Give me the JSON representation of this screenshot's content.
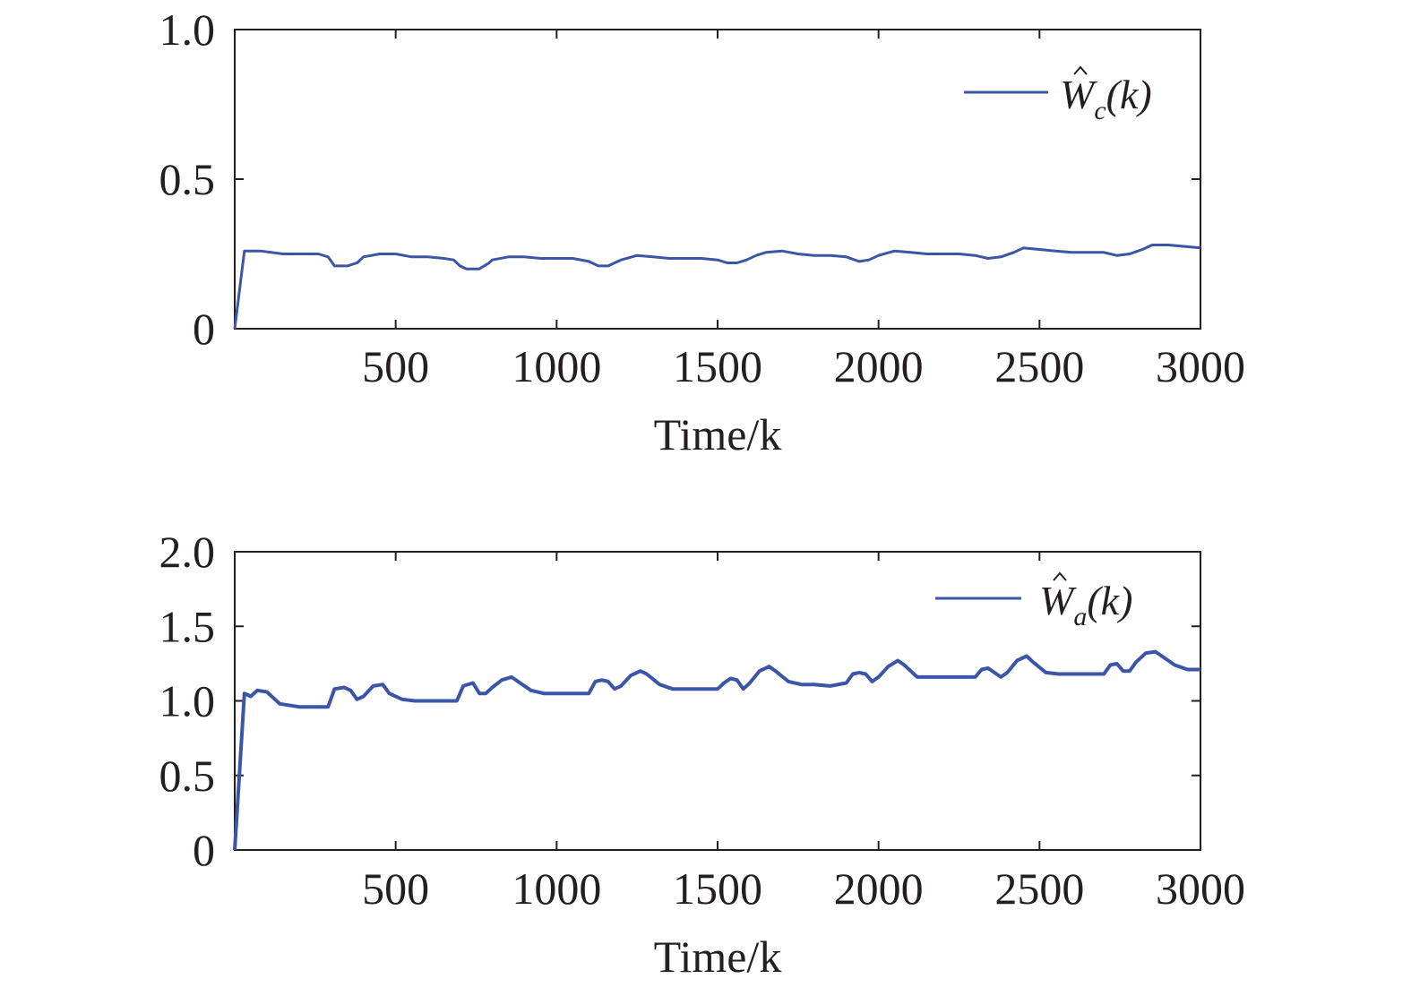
{
  "chart_data": [
    {
      "type": "line",
      "xlabel": "Time/k",
      "ylabel": "",
      "xlim": [
        0,
        3000
      ],
      "ylim": [
        0,
        1.0
      ],
      "xticks": [
        500,
        1000,
        1500,
        2000,
        2500,
        3000
      ],
      "xtick_labels": [
        "500",
        "1000",
        "1500",
        "2000",
        "2500",
        "3000"
      ],
      "yticks": [
        0,
        0.5,
        1.0
      ],
      "ytick_labels": [
        "0",
        "0.5",
        "1.0"
      ],
      "grid": false,
      "legend_position": "top-right",
      "line_color": "#3b55a7",
      "series": [
        {
          "legend": {
            "symbol": "W",
            "subscript": "c",
            "arg": "(k)"
          },
          "x": [
            0,
            30,
            50,
            80,
            150,
            220,
            260,
            290,
            310,
            350,
            380,
            400,
            450,
            500,
            550,
            600,
            650,
            680,
            700,
            720,
            760,
            790,
            800,
            850,
            900,
            950,
            1000,
            1050,
            1100,
            1130,
            1160,
            1180,
            1200,
            1250,
            1300,
            1350,
            1400,
            1450,
            1500,
            1530,
            1560,
            1590,
            1620,
            1650,
            1700,
            1750,
            1800,
            1850,
            1900,
            1940,
            1970,
            2000,
            2050,
            2100,
            2150,
            2200,
            2250,
            2300,
            2340,
            2380,
            2420,
            2450,
            2500,
            2550,
            2600,
            2650,
            2700,
            2740,
            2780,
            2820,
            2850,
            2900,
            2950,
            3000
          ],
          "y": [
            0,
            0.26,
            0.26,
            0.26,
            0.25,
            0.25,
            0.25,
            0.24,
            0.21,
            0.21,
            0.22,
            0.24,
            0.25,
            0.25,
            0.24,
            0.24,
            0.235,
            0.23,
            0.21,
            0.2,
            0.2,
            0.22,
            0.23,
            0.24,
            0.24,
            0.235,
            0.235,
            0.235,
            0.225,
            0.21,
            0.21,
            0.22,
            0.23,
            0.245,
            0.24,
            0.235,
            0.235,
            0.235,
            0.23,
            0.22,
            0.22,
            0.23,
            0.245,
            0.255,
            0.26,
            0.25,
            0.245,
            0.245,
            0.24,
            0.225,
            0.23,
            0.245,
            0.26,
            0.255,
            0.25,
            0.25,
            0.25,
            0.245,
            0.235,
            0.24,
            0.255,
            0.27,
            0.265,
            0.26,
            0.255,
            0.255,
            0.255,
            0.245,
            0.25,
            0.265,
            0.28,
            0.28,
            0.275,
            0.27
          ]
        }
      ]
    },
    {
      "type": "line",
      "xlabel": "Time/k",
      "ylabel": "",
      "xlim": [
        0,
        3000
      ],
      "ylim": [
        0,
        2.0
      ],
      "xticks": [
        500,
        1000,
        1500,
        2000,
        2500,
        3000
      ],
      "xtick_labels": [
        "500",
        "1000",
        "1500",
        "2000",
        "2500",
        "3000"
      ],
      "yticks": [
        0,
        0.5,
        1.0,
        1.5,
        2.0
      ],
      "ytick_labels": [
        "0",
        "0.5",
        "1.0",
        "1.5",
        "2.0"
      ],
      "grid": false,
      "legend_position": "top-right",
      "line_color": "#3b55a7",
      "series": [
        {
          "legend": {
            "symbol": "W",
            "subscript": "a",
            "arg": "(k)"
          },
          "x": [
            0,
            30,
            50,
            70,
            100,
            140,
            200,
            250,
            290,
            310,
            340,
            360,
            380,
            400,
            430,
            460,
            480,
            520,
            560,
            600,
            650,
            690,
            710,
            740,
            760,
            780,
            800,
            830,
            860,
            880,
            920,
            960,
            1000,
            1050,
            1100,
            1120,
            1140,
            1160,
            1180,
            1200,
            1230,
            1260,
            1280,
            1320,
            1360,
            1400,
            1450,
            1500,
            1520,
            1540,
            1560,
            1580,
            1600,
            1630,
            1660,
            1680,
            1720,
            1760,
            1800,
            1850,
            1900,
            1920,
            1940,
            1960,
            1980,
            2000,
            2030,
            2060,
            2080,
            2120,
            2160,
            2200,
            2250,
            2300,
            2320,
            2340,
            2360,
            2380,
            2400,
            2430,
            2460,
            2480,
            2520,
            2560,
            2600,
            2650,
            2700,
            2720,
            2740,
            2760,
            2780,
            2800,
            2830,
            2860,
            2880,
            2920,
            2960,
            3000
          ],
          "y": [
            0,
            1.05,
            1.03,
            1.07,
            1.06,
            0.98,
            0.96,
            0.96,
            0.96,
            1.08,
            1.09,
            1.07,
            1.01,
            1.03,
            1.1,
            1.11,
            1.05,
            1.01,
            1.0,
            1.0,
            1.0,
            1.0,
            1.1,
            1.12,
            1.05,
            1.05,
            1.09,
            1.14,
            1.16,
            1.13,
            1.07,
            1.05,
            1.05,
            1.05,
            1.05,
            1.13,
            1.14,
            1.13,
            1.08,
            1.1,
            1.17,
            1.2,
            1.18,
            1.11,
            1.08,
            1.08,
            1.08,
            1.08,
            1.12,
            1.15,
            1.14,
            1.08,
            1.12,
            1.2,
            1.23,
            1.2,
            1.13,
            1.11,
            1.11,
            1.1,
            1.12,
            1.18,
            1.19,
            1.18,
            1.13,
            1.16,
            1.23,
            1.27,
            1.24,
            1.16,
            1.16,
            1.16,
            1.16,
            1.16,
            1.21,
            1.22,
            1.19,
            1.16,
            1.19,
            1.27,
            1.3,
            1.26,
            1.19,
            1.18,
            1.18,
            1.18,
            1.18,
            1.24,
            1.25,
            1.2,
            1.2,
            1.26,
            1.32,
            1.33,
            1.3,
            1.24,
            1.21,
            1.21
          ]
        }
      ]
    }
  ]
}
